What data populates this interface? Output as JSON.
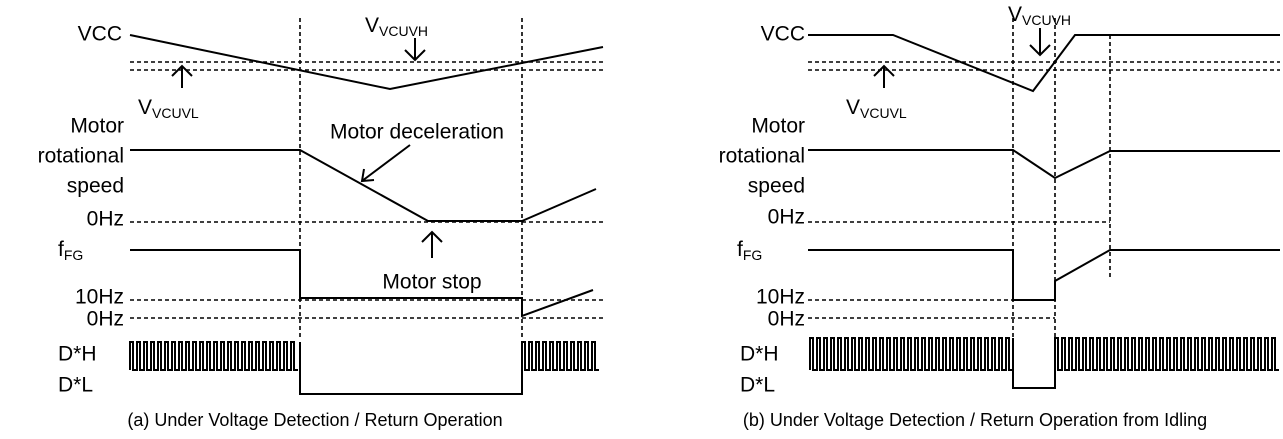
{
  "panels": [
    {
      "caption": "(a) Under Voltage Detection / Return Operation",
      "vcc": "VCC",
      "vcuvh": {
        "main": "V",
        "sub": "VCUVH"
      },
      "vcuvl": {
        "main": "V",
        "sub": "VCUVL"
      },
      "speed_label": [
        "Motor",
        "rotational",
        "speed"
      ],
      "deceleration": "Motor deceleration",
      "stop": "Motor stop",
      "speed_zero": "0Hz",
      "fg": {
        "main": "f",
        "sub": "FG"
      },
      "fg_ten": "10Hz",
      "fg_zero": "0Hz",
      "dh": "D*H",
      "dl": "D*L"
    },
    {
      "caption": "(b) Under Voltage Detection / Return Operation from Idling",
      "vcc": "VCC",
      "vcuvh": {
        "main": "V",
        "sub": "VCUVH"
      },
      "vcuvl": {
        "main": "V",
        "sub": "VCUVL"
      },
      "speed_label": [
        "Motor",
        "rotational",
        "speed"
      ],
      "speed_zero": "0Hz",
      "fg": {
        "main": "f",
        "sub": "FG"
      },
      "fg_ten": "10Hz",
      "fg_zero": "0Hz",
      "dh": "D*H",
      "dl": "D*L"
    }
  ]
}
